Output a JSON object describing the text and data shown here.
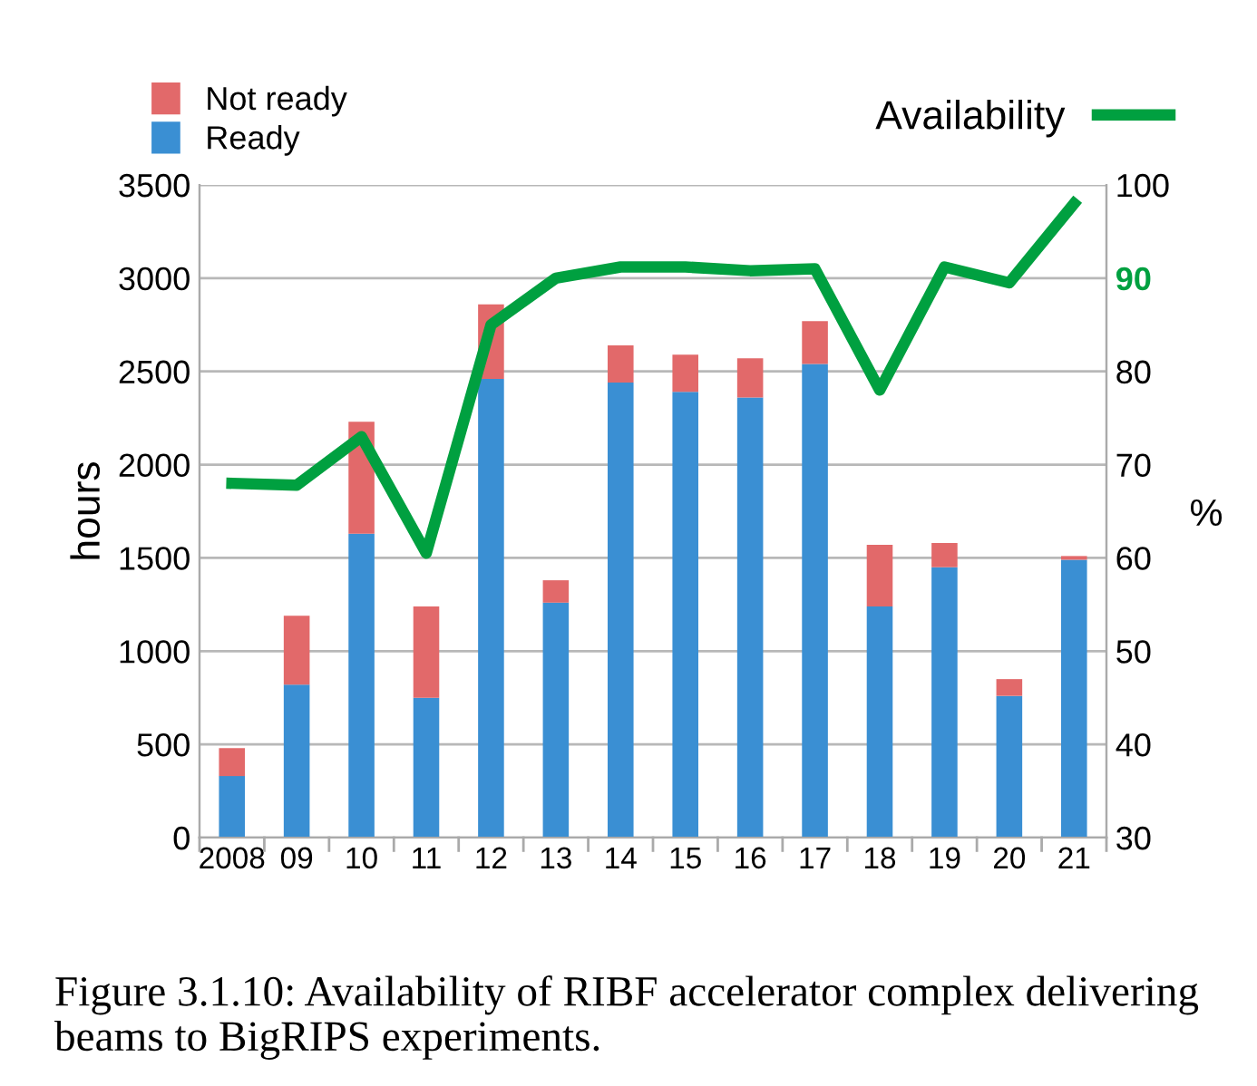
{
  "chart_data": {
    "type": "bar",
    "stacked": true,
    "categories": [
      "2008",
      "09",
      "10",
      "11",
      "12",
      "13",
      "14",
      "15",
      "16",
      "17",
      "18",
      "19",
      "20",
      "21"
    ],
    "series": [
      {
        "name": "Ready",
        "color": "#3a8fd3",
        "values": [
          330,
          820,
          1630,
          750,
          2460,
          1260,
          2440,
          2390,
          2360,
          2540,
          1240,
          1450,
          760,
          1490
        ]
      },
      {
        "name": "Not ready",
        "color": "#e2696a",
        "values": [
          150,
          370,
          600,
          490,
          400,
          120,
          200,
          200,
          210,
          230,
          330,
          130,
          90,
          20
        ]
      },
      {
        "name": "Availability",
        "type": "line",
        "axis": "y2",
        "color": "#00a040",
        "values": [
          68,
          67.8,
          73,
          60.5,
          85,
          90,
          91.2,
          91.2,
          90.8,
          91,
          78,
          91.2,
          89.5,
          98
        ]
      }
    ],
    "ylabel": "hours",
    "y2label": "%",
    "ylim": [
      0,
      3500
    ],
    "yticks": [
      0,
      500,
      1000,
      1500,
      2000,
      2500,
      3000,
      3500
    ],
    "y2lim": [
      30,
      100
    ],
    "y2ticks": [
      30,
      40,
      50,
      60,
      70,
      80,
      90,
      100
    ],
    "grid": "y",
    "legend": "top",
    "annotations": [
      "Figure 3.1.10: Availability of RIBF accelerator complex delivering beams to BigRIPS experiments."
    ]
  }
}
